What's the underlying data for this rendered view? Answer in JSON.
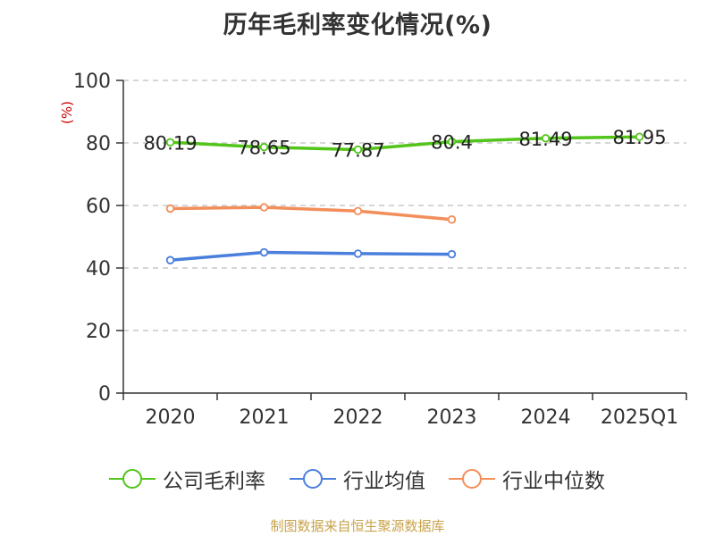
{
  "chart_data": {
    "type": "line",
    "title": "历年毛利率变化情况(%)",
    "ylabel": "(%)",
    "xlabel": "",
    "categories": [
      "2020",
      "2021",
      "2022",
      "2023",
      "2024",
      "2025Q1"
    ],
    "ylim": [
      0,
      100
    ],
    "yticks": [
      0,
      20,
      40,
      60,
      80,
      100
    ],
    "grid": true,
    "legend_position": "bottom",
    "series": [
      {
        "name": "公司毛利率",
        "color": "#52c41a",
        "values": [
          80.19,
          78.65,
          77.87,
          80.4,
          81.49,
          81.95
        ],
        "labels": [
          "80.19",
          "78.65",
          "77.87",
          "80.4",
          "81.49",
          "81.95"
        ]
      },
      {
        "name": "行业均值",
        "color": "#4a7fdc",
        "values": [
          42.5,
          45.0,
          44.6,
          44.4,
          null,
          null
        ]
      },
      {
        "name": "行业中位数",
        "color": "#f28e5a",
        "values": [
          59.0,
          59.4,
          58.2,
          55.5,
          null,
          null
        ]
      }
    ]
  },
  "source_note": "制图数据来自恒生聚源数据库"
}
